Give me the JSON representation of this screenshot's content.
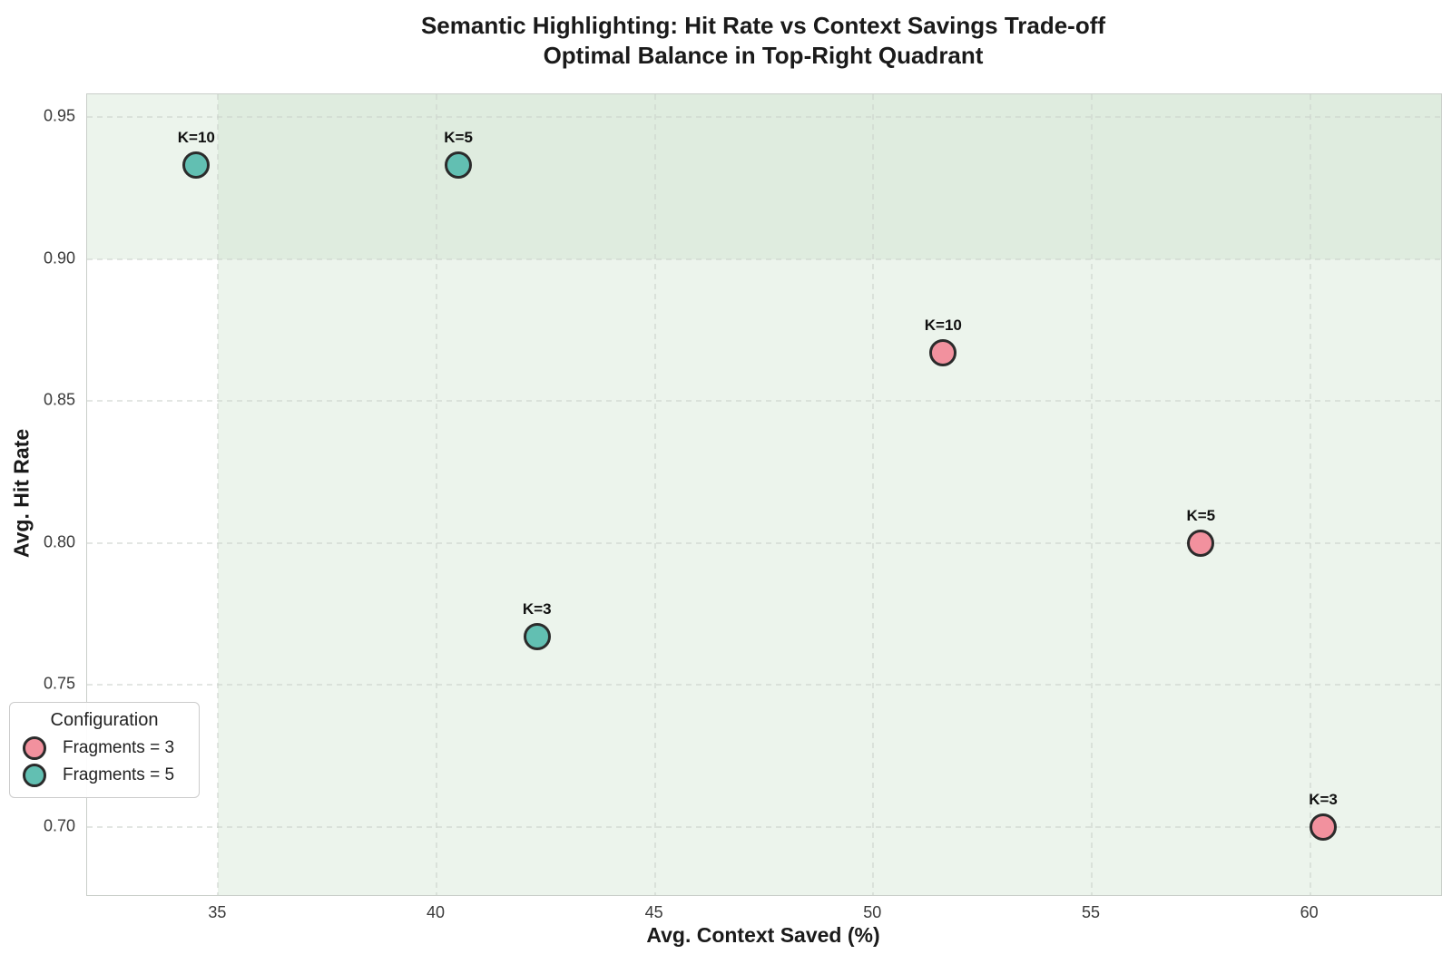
{
  "title": {
    "line1": "Semantic Highlighting: Hit Rate vs Context Savings Trade-off",
    "line2": "Optimal Balance in Top-Right Quadrant"
  },
  "chart_data": {
    "type": "scatter",
    "title": "Semantic Highlighting: Hit Rate vs Context Savings Trade-off",
    "subtitle": "Optimal Balance in Top-Right Quadrant",
    "xlabel": "Avg. Context Saved (%)",
    "ylabel": "Avg. Hit Rate",
    "xlim": [
      32,
      63
    ],
    "ylim": [
      0.676,
      0.958
    ],
    "x_ticks": [
      35,
      40,
      45,
      50,
      55,
      60
    ],
    "y_ticks": [
      0.95,
      0.9,
      0.85,
      0.8,
      0.75,
      0.7
    ],
    "grid": true,
    "grid_style": "dashed",
    "shaded_regions": [
      {
        "kind": "hspan",
        "from_y": 0.9,
        "to_y": 0.958,
        "note": "high hit-rate band"
      },
      {
        "kind": "vspan",
        "from_x": 35,
        "to_x": 63,
        "note": "high context-savings band"
      }
    ],
    "series": [
      {
        "name": "Fragments = 3",
        "color": "#F2919E",
        "points": [
          {
            "label": "K=3",
            "x": 60.3,
            "y": 0.7
          },
          {
            "label": "K=5",
            "x": 57.5,
            "y": 0.8
          },
          {
            "label": "K=10",
            "x": 51.6,
            "y": 0.867
          }
        ]
      },
      {
        "name": "Fragments = 5",
        "color": "#62BFB2",
        "points": [
          {
            "label": "K=3",
            "x": 42.3,
            "y": 0.767
          },
          {
            "label": "K=5",
            "x": 40.5,
            "y": 0.933
          },
          {
            "label": "K=10",
            "x": 34.5,
            "y": 0.933
          }
        ]
      }
    ],
    "legend": {
      "title": "Configuration",
      "position": "lower left"
    }
  },
  "colors": {
    "series_fragments_3": "#F2919E",
    "series_fragments_5": "#62BFB2",
    "marker_edge": "#2b2b2b",
    "shade_green": "rgba(197, 221, 197, 0.32)",
    "plot_border": "#c9cec9"
  }
}
